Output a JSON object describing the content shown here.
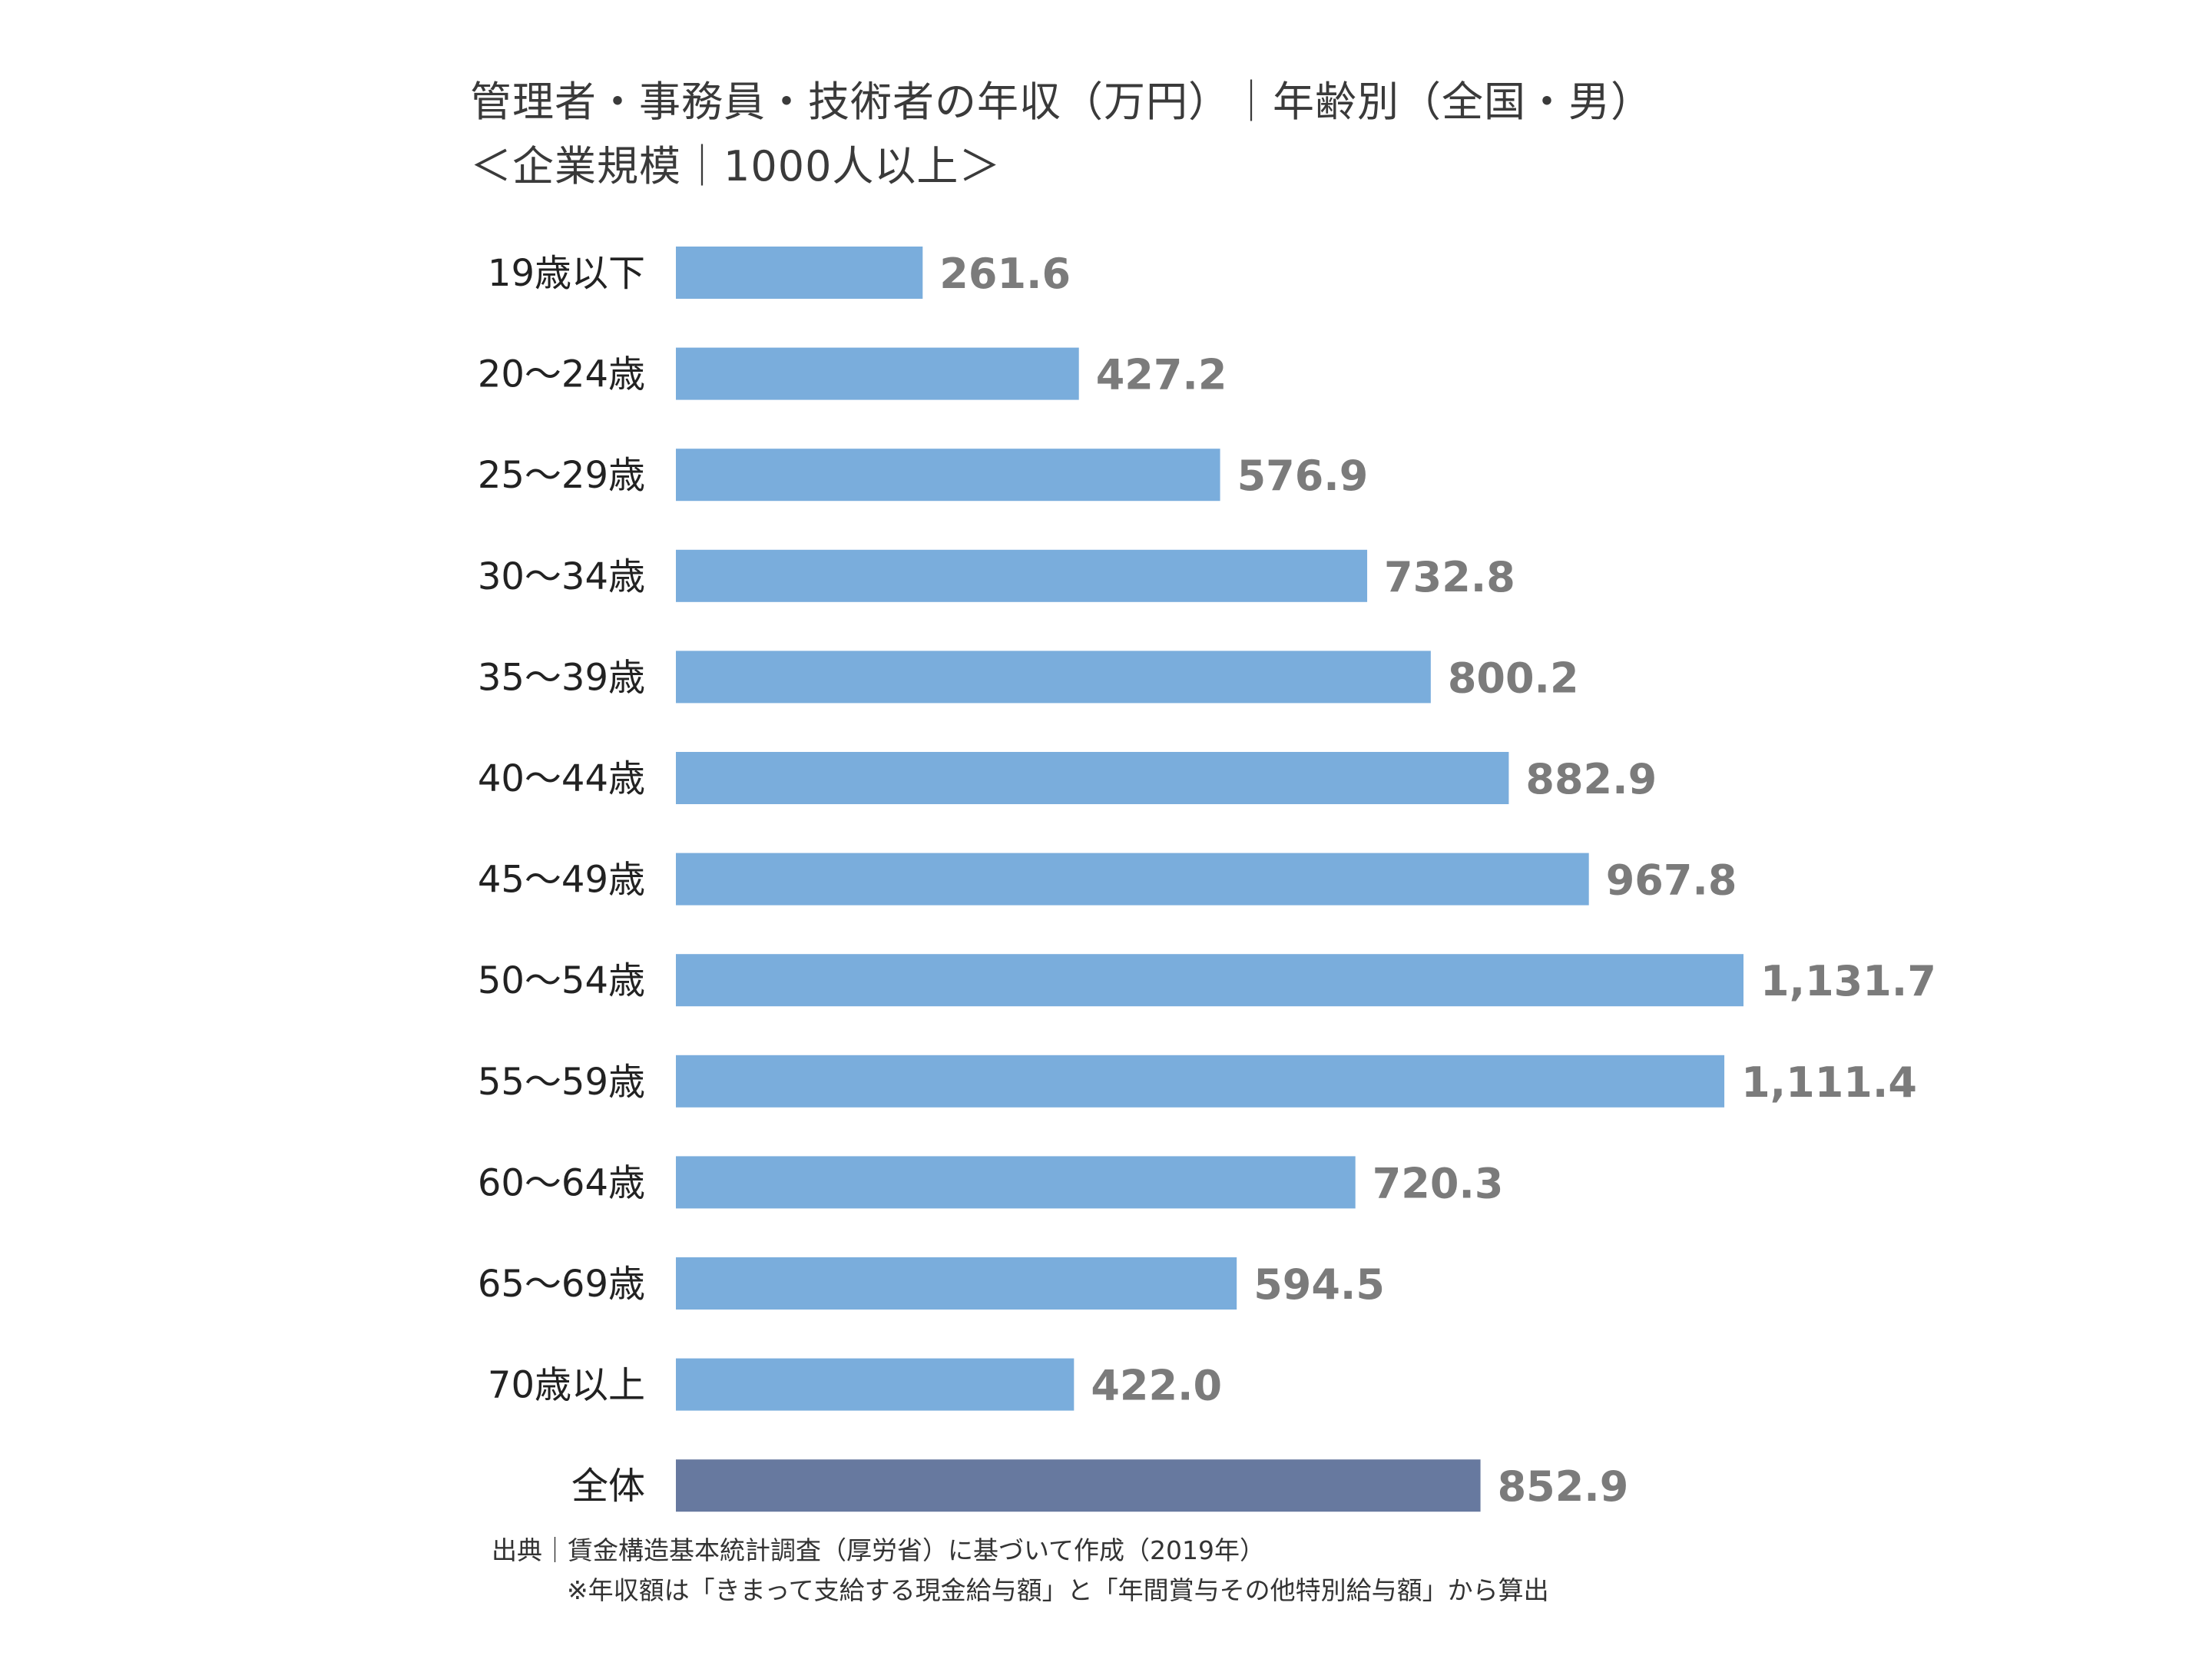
{
  "chart_data": {
    "type": "bar",
    "orientation": "horizontal",
    "title": "管理者・事務員・技術者の年収（万円）｜年齢別（全国・男）",
    "subtitle": "＜企業規模｜1000人以上＞",
    "categories": [
      "19歳以下",
      "20～24歳",
      "25～29歳",
      "30～34歳",
      "35～39歳",
      "40～44歳",
      "45～49歳",
      "50～54歳",
      "55～59歳",
      "60～64歳",
      "65～69歳",
      "70歳以上",
      "全体"
    ],
    "values": [
      261.6,
      427.2,
      576.9,
      732.8,
      800.2,
      882.9,
      967.8,
      1131.7,
      1111.4,
      720.3,
      594.5,
      422.0,
      852.9
    ],
    "value_labels": [
      "261.6",
      "427.2",
      "576.9",
      "732.8",
      "800.2",
      "882.9",
      "967.8",
      "1,131.7",
      "1,111.4",
      "720.3",
      "594.5",
      "422.0",
      "852.9"
    ],
    "xlim": [
      0,
      1131.7
    ],
    "grid": false,
    "legend": "none",
    "colors": {
      "bar": "#7aaddc",
      "total_bar": "#67799f",
      "value_text": "#7b7b7b"
    }
  },
  "footer": {
    "source": "出典｜賃金構造基本統計調査（厚労省）に基づいて作成（2019年）",
    "note": "※年収額は「きまって支給する現金給与額」と「年間賞与その他特別給与額」から算出"
  }
}
